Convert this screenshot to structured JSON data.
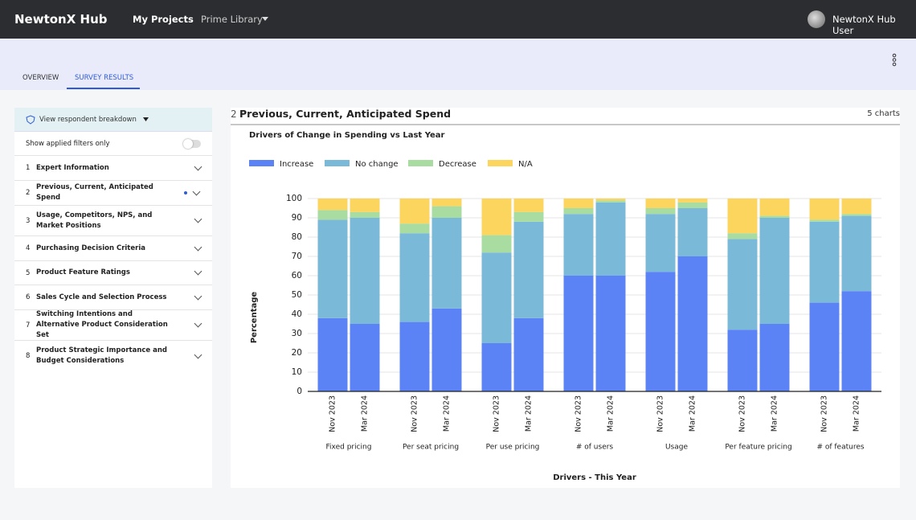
{
  "header": {
    "brand": "NewtonX Hub",
    "nav": [
      "My Projects",
      "Prime Library"
    ],
    "user": "NewtonX Hub User"
  },
  "tabs": [
    "OVERVIEW",
    "SURVEY RESULTS"
  ],
  "sidebar": {
    "breakdown": "View respondent breakdown",
    "filter_toggle": "Show applied filters only",
    "items": [
      {
        "number": "1",
        "label": "Expert Information"
      },
      {
        "number": "2",
        "label": "Previous, Current, Anticipated Spend"
      },
      {
        "number": "3",
        "label": "Usage, Competitors, NPS, and Market Positions"
      },
      {
        "number": "4",
        "label": "Purchasing Decision Criteria"
      },
      {
        "number": "5",
        "label": "Product Feature Ratings"
      },
      {
        "number": "6",
        "label": "Sales Cycle and Selection Process"
      },
      {
        "number": "7",
        "label": "Switching Intentions and Alternative Product Consideration Set"
      },
      {
        "number": "8",
        "label": "Product Strategic Importance and Budget Considerations"
      }
    ]
  },
  "section": {
    "number": "2",
    "title": "Previous, Current, Anticipated Spend",
    "count": "5 charts"
  },
  "chart_data": {
    "type": "stacked_bar",
    "title": "Drivers of Change in Spending vs Last Year",
    "x_label": "Drivers - This Year",
    "y_label": "Percentage",
    "groups": [
      "Fixed pricing",
      "Per seat pricing",
      "Per use pricing",
      "# of users",
      "Usage",
      "Per feature pricing",
      "# of features"
    ],
    "categories": [
      "Nov 2023",
      "Mar 2024",
      "Nov 2023",
      "Mar 2024",
      "Nov 2023",
      "Mar 2024",
      "Nov 2023",
      "Mar 2024",
      "Nov 2023",
      "Mar 2024",
      "Nov 2023",
      "Mar 2024",
      "Nov 2023",
      "Mar 2024"
    ],
    "series": [
      {
        "name": "Increase",
        "color": "#5b83f5",
        "values": [
          38,
          35,
          36,
          43,
          25,
          38,
          60,
          60,
          62,
          70,
          32,
          35,
          46,
          52
        ]
      },
      {
        "name": "No change",
        "color": "#7bb9d8",
        "values": [
          51,
          55,
          46,
          47,
          47,
          50,
          32,
          38,
          30,
          25,
          47,
          55,
          42,
          39
        ]
      },
      {
        "name": "Decrease",
        "color": "#a9dca1",
        "values": [
          5,
          3,
          5,
          6,
          9,
          5,
          3,
          1,
          3,
          3,
          3,
          1,
          1,
          1
        ]
      },
      {
        "name": "N/A",
        "color": "#fbd55e",
        "values": [
          6,
          7,
          13,
          4,
          19,
          7,
          5,
          1,
          5,
          2,
          18,
          9,
          11,
          8
        ]
      }
    ],
    "ylim": [
      0,
      100
    ],
    "yticks": [
      0,
      10,
      20,
      30,
      40,
      50,
      60,
      70,
      80,
      90,
      100
    ],
    "grid": true,
    "legend": "top-left"
  }
}
